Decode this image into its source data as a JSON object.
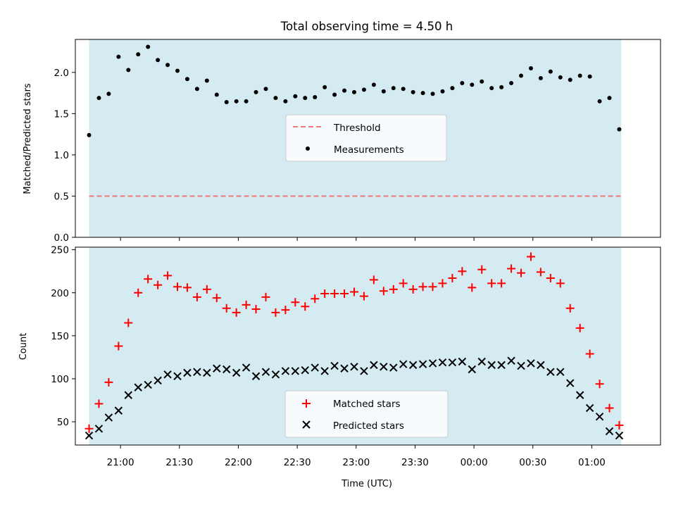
{
  "chart_data": [
    {
      "type": "scatter",
      "title": "Total observing time = 4.50 h",
      "xlabel": "",
      "ylabel": "Matched/Predicted stars",
      "xlim": [
        "20:37",
        "01:35"
      ],
      "ylim": [
        0,
        2.4
      ],
      "yticks": [
        0.0,
        0.5,
        1.0,
        1.5,
        2.0
      ],
      "ytick_labels": [
        "0.0",
        "0.5",
        "1.0",
        "1.5",
        "2.0"
      ],
      "observing_window": [
        "20:44",
        "01:15"
      ],
      "window_color": "#d4ebf2",
      "threshold": {
        "name": "Threshold",
        "value": 0.5,
        "color": "#ee7777",
        "style": "dashed"
      },
      "legend": {
        "placement": "center",
        "entries": [
          "Threshold",
          "Measurements"
        ]
      },
      "series": [
        {
          "name": "Measurements",
          "color": "#000000",
          "marker": "dot",
          "x": [
            "20:44",
            "20:49",
            "20:54",
            "20:59",
            "21:04",
            "21:09",
            "21:14",
            "21:19",
            "21:24",
            "21:29",
            "21:34",
            "21:39",
            "21:44",
            "21:49",
            "21:54",
            "21:59",
            "22:04",
            "22:09",
            "22:14",
            "22:19",
            "22:24",
            "22:29",
            "22:34",
            "22:39",
            "22:44",
            "22:49",
            "22:54",
            "22:59",
            "23:04",
            "23:09",
            "23:14",
            "23:19",
            "23:24",
            "23:29",
            "23:34",
            "23:39",
            "23:44",
            "23:49",
            "23:54",
            "23:59",
            "00:04",
            "00:09",
            "00:14",
            "00:19",
            "00:24",
            "00:29",
            "00:34",
            "00:39",
            "00:44",
            "00:49",
            "00:54",
            "00:59",
            "01:04",
            "01:09",
            "01:14"
          ],
          "y": [
            1.24,
            1.69,
            1.74,
            2.19,
            2.03,
            2.22,
            2.31,
            2.15,
            2.09,
            2.02,
            1.92,
            1.8,
            1.9,
            1.73,
            1.64,
            1.65,
            1.65,
            1.76,
            1.8,
            1.69,
            1.65,
            1.71,
            1.69,
            1.7,
            1.82,
            1.73,
            1.78,
            1.76,
            1.79,
            1.85,
            1.77,
            1.81,
            1.8,
            1.76,
            1.75,
            1.74,
            1.77,
            1.81,
            1.87,
            1.85,
            1.89,
            1.81,
            1.82,
            1.87,
            1.96,
            2.05,
            1.93,
            2.01,
            1.94,
            1.91,
            1.96,
            1.95,
            1.65,
            1.69,
            1.31
          ]
        }
      ]
    },
    {
      "type": "scatter",
      "title": "",
      "xlabel": "Time (UTC)",
      "ylabel": "Count",
      "xlim": [
        "20:37",
        "01:35"
      ],
      "ylim": [
        23,
        253
      ],
      "yticks": [
        50,
        100,
        150,
        200,
        250
      ],
      "ytick_labels": [
        "50",
        "100",
        "150",
        "200",
        "250"
      ],
      "xticks": [
        "21:00",
        "21:30",
        "22:00",
        "22:30",
        "23:00",
        "23:30",
        "00:00",
        "00:30",
        "01:00"
      ],
      "xtick_labels": [
        "21:00",
        "21:30",
        "22:00",
        "22:30",
        "23:00",
        "23:30",
        "00:00",
        "00:30",
        "01:00"
      ],
      "observing_window": [
        "20:44",
        "01:15"
      ],
      "window_color": "#d4ebf2",
      "legend": {
        "placement": "bottom-center",
        "entries": [
          "Matched stars",
          "Predicted stars"
        ]
      },
      "series": [
        {
          "name": "Matched stars",
          "color": "#ff0000",
          "marker": "plus",
          "x": [
            "20:44",
            "20:49",
            "20:54",
            "20:59",
            "21:04",
            "21:09",
            "21:14",
            "21:19",
            "21:24",
            "21:29",
            "21:34",
            "21:39",
            "21:44",
            "21:49",
            "21:54",
            "21:59",
            "22:04",
            "22:09",
            "22:14",
            "22:19",
            "22:24",
            "22:29",
            "22:34",
            "22:39",
            "22:44",
            "22:49",
            "22:54",
            "22:59",
            "23:04",
            "23:09",
            "23:14",
            "23:19",
            "23:24",
            "23:29",
            "23:34",
            "23:39",
            "23:44",
            "23:49",
            "23:54",
            "23:59",
            "00:04",
            "00:09",
            "00:14",
            "00:19",
            "00:24",
            "00:29",
            "00:34",
            "00:39",
            "00:44",
            "00:49",
            "00:54",
            "00:59",
            "01:04",
            "01:09",
            "01:14"
          ],
          "y": [
            42,
            71,
            96,
            138,
            165,
            200,
            216,
            209,
            220,
            207,
            206,
            195,
            204,
            194,
            182,
            177,
            186,
            181,
            195,
            177,
            180,
            189,
            184,
            193,
            199,
            199,
            199,
            201,
            196,
            215,
            202,
            204,
            211,
            204,
            207,
            207,
            211,
            217,
            225,
            206,
            227,
            211,
            211,
            228,
            223,
            242,
            224,
            217,
            211,
            182,
            159,
            129,
            94,
            66,
            46
          ]
        },
        {
          "name": "Predicted stars",
          "color": "#000000",
          "marker": "x",
          "x": [
            "20:44",
            "20:49",
            "20:54",
            "20:59",
            "21:04",
            "21:09",
            "21:14",
            "21:19",
            "21:24",
            "21:29",
            "21:34",
            "21:39",
            "21:44",
            "21:49",
            "21:54",
            "21:59",
            "22:04",
            "22:09",
            "22:14",
            "22:19",
            "22:24",
            "22:29",
            "22:34",
            "22:39",
            "22:44",
            "22:49",
            "22:54",
            "22:59",
            "23:04",
            "23:09",
            "23:14",
            "23:19",
            "23:24",
            "23:29",
            "23:34",
            "23:39",
            "23:44",
            "23:49",
            "23:54",
            "23:59",
            "00:04",
            "00:09",
            "00:14",
            "00:19",
            "00:24",
            "00:29",
            "00:34",
            "00:39",
            "00:44",
            "00:49",
            "00:54",
            "00:59",
            "01:04",
            "01:09",
            "01:14"
          ],
          "y": [
            34,
            42,
            55,
            63,
            81,
            90,
            93,
            98,
            105,
            103,
            107,
            108,
            107,
            112,
            111,
            107,
            113,
            103,
            108,
            105,
            109,
            109,
            110,
            113,
            109,
            115,
            112,
            114,
            109,
            116,
            114,
            113,
            117,
            116,
            117,
            118,
            119,
            119,
            120,
            111,
            120,
            116,
            116,
            121,
            115,
            118,
            116,
            108,
            108,
            95,
            81,
            66,
            56,
            39,
            34
          ]
        }
      ]
    }
  ]
}
